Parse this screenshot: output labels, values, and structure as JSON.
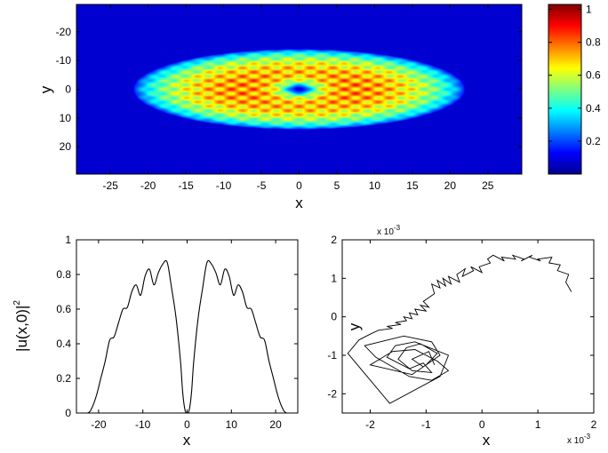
{
  "chart_data": [
    {
      "type": "heatmap",
      "title": "",
      "xlabel": "x",
      "ylabel": "y",
      "xlim": [
        -29.5,
        29.5
      ],
      "ylim": [
        -29.5,
        29.5
      ],
      "y_reversed": true,
      "xticks": [
        "-25",
        "-20",
        "-15",
        "-10",
        "-5",
        "0",
        "5",
        "10",
        "15",
        "20",
        "25"
      ],
      "xtick_values": [
        -25,
        -20,
        -15,
        -10,
        -5,
        0,
        5,
        10,
        15,
        20,
        25
      ],
      "yticks": [
        "-20",
        "-10",
        "0",
        "10",
        "20"
      ],
      "ytick_values": [
        -20,
        -10,
        0,
        10,
        20
      ],
      "colormap": "jet",
      "colorbar": {
        "range": [
          0,
          1.03
        ],
        "ticks": [
          "0.2",
          "0.4",
          "0.6",
          "0.8",
          "1"
        ],
        "tick_values": [
          0.2,
          0.4,
          0.6,
          0.8,
          1.0
        ]
      },
      "description_values": {
        "cloud_radius_x": 22,
        "cloud_radius_y": 14,
        "vortex_core_radius": 1.5,
        "lattice_spacing": 3
      }
    },
    {
      "type": "line",
      "title": "",
      "xlabel": "x",
      "ylabel": "|u(x,0)|",
      "ylabel_superscript": "2",
      "xlim": [
        -25,
        25
      ],
      "ylim": [
        0,
        1
      ],
      "xticks": [
        "-20",
        "-10",
        "0",
        "10",
        "20"
      ],
      "xtick_values": [
        -20,
        -10,
        0,
        10,
        20
      ],
      "yticks": [
        "0",
        "0.2",
        "0.4",
        "0.6",
        "0.8",
        "1"
      ],
      "ytick_values": [
        0,
        0.2,
        0.4,
        0.6,
        0.8,
        1
      ],
      "series": [
        {
          "x": [
            -25,
            -22.5,
            -21.5,
            -20.5,
            -19.5,
            -18.5,
            -17.5,
            -16.5,
            -15.5,
            -14.5,
            -13.5,
            -12.5,
            -11.5,
            -10.5,
            -9.5,
            -8.5,
            -7.5,
            -6.5,
            -5.5,
            -4.5,
            -3.5,
            -2.5,
            -1.5,
            -1,
            -0.5,
            0,
            0.5,
            1,
            1.5,
            2.5,
            3.5,
            4.5,
            5.5,
            6.5,
            7.5,
            8.5,
            9.5,
            10.5,
            11.5,
            12.5,
            13.5,
            14.5,
            15.5,
            16.5,
            17.5,
            18.5,
            19.5,
            20.5,
            21.5,
            22.5,
            25
          ],
          "y": [
            0,
            0,
            0.03,
            0.1,
            0.2,
            0.3,
            0.42,
            0.44,
            0.52,
            0.6,
            0.61,
            0.7,
            0.74,
            0.68,
            0.79,
            0.83,
            0.74,
            0.81,
            0.86,
            0.87,
            0.72,
            0.55,
            0.3,
            0.12,
            0.02,
            0,
            0.02,
            0.12,
            0.3,
            0.55,
            0.72,
            0.87,
            0.86,
            0.81,
            0.74,
            0.83,
            0.79,
            0.68,
            0.74,
            0.7,
            0.61,
            0.6,
            0.52,
            0.44,
            0.42,
            0.3,
            0.2,
            0.1,
            0.03,
            0,
            0
          ]
        }
      ]
    },
    {
      "type": "line",
      "title": "",
      "xlabel": "x",
      "ylabel": "y",
      "x_multiplier": "x 10",
      "x_multiplier_exp": "-3",
      "y_multiplier": "x 10",
      "y_multiplier_exp": "-3",
      "xlim": [
        -2.5,
        2
      ],
      "ylim": [
        -2.5,
        2
      ],
      "xticks": [
        "-2",
        "-1",
        "0",
        "1",
        "2"
      ],
      "xtick_values": [
        -2,
        -1,
        0,
        1,
        2
      ],
      "yticks": [
        "-2",
        "-1",
        "0",
        "1",
        "2"
      ],
      "ytick_values": [
        -2,
        -1,
        0,
        1,
        2
      ],
      "series": [
        {
          "x": [
            1.6,
            1.5,
            1.55,
            1.35,
            1.4,
            1.2,
            1.25,
            1.0,
            1.05,
            0.85,
            0.9,
            0.7,
            0.75,
            0.55,
            0.6,
            0.35,
            0.4,
            0.2,
            0.1,
            0.15,
            -0.05,
            0.0,
            -0.2,
            -0.15,
            -0.35,
            -0.3,
            -0.45,
            -0.4,
            -0.6,
            -0.55,
            -0.7,
            -0.65,
            -0.8,
            -0.75,
            -0.9,
            -0.85,
            -0.95,
            -1.05,
            -0.95,
            -1.1,
            -1.0,
            -1.2,
            -1.15,
            -1.3,
            -1.25,
            -1.4,
            -1.35,
            -1.55,
            -1.45,
            -1.7,
            -1.6,
            -1.85,
            -2.0,
            -2.2,
            -2.4,
            -1.65,
            -0.75,
            -0.6,
            -1.2,
            -1.55,
            -1.7,
            -1.3,
            -1.05,
            -0.9,
            -1.25,
            -1.5,
            -1.35,
            -1.1,
            -0.8,
            -1.0,
            -1.25,
            -2.0,
            -1.6,
            -1.2,
            -0.8,
            -0.6,
            -0.9,
            -1.3,
            -1.9,
            -2.1,
            -1.4,
            -0.9,
            -0.75,
            -1.05,
            -1.25,
            -0.95,
            -0.85
          ],
          "y": [
            0.65,
            0.9,
            1.1,
            1.2,
            1.35,
            1.4,
            1.55,
            1.5,
            1.45,
            1.55,
            1.6,
            1.45,
            1.5,
            1.6,
            1.5,
            1.55,
            1.45,
            1.6,
            1.5,
            1.4,
            1.3,
            1.15,
            1.3,
            1.2,
            1.05,
            1.25,
            1.1,
            0.9,
            1.05,
            0.85,
            1.0,
            0.8,
            0.95,
            0.75,
            0.85,
            0.6,
            0.5,
            0.4,
            0.25,
            0.3,
            0.15,
            0.2,
            0.05,
            0.1,
            -0.05,
            0.0,
            -0.1,
            -0.15,
            -0.2,
            -0.25,
            -0.3,
            -0.35,
            -0.45,
            -0.6,
            -0.95,
            -2.25,
            -1.55,
            -1.0,
            -0.65,
            -0.75,
            -1.05,
            -1.35,
            -1.2,
            -1.45,
            -1.4,
            -1.1,
            -0.8,
            -0.7,
            -0.95,
            -1.25,
            -1.5,
            -1.25,
            -0.9,
            -0.85,
            -1.15,
            -1.4,
            -1.65,
            -1.55,
            -1.05,
            -0.75,
            -0.5,
            -0.65,
            -1.0,
            -1.3,
            -1.1,
            -0.9,
            -1.25
          ]
        }
      ]
    }
  ]
}
